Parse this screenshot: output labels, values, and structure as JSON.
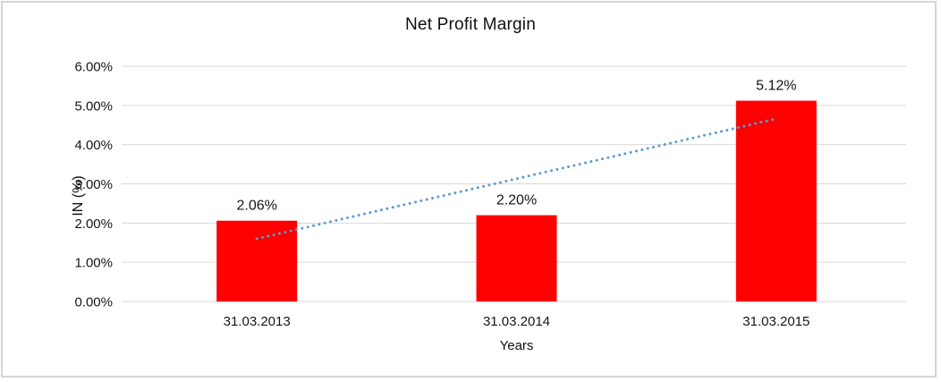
{
  "chart_data": {
    "type": "bar",
    "title": "Net Profit Margin",
    "xlabel": "Years",
    "ylabel": "IN (%)",
    "categories": [
      "31.03.2013",
      "31.03.2014",
      "31.03.2015"
    ],
    "values": [
      2.06,
      2.2,
      5.12
    ],
    "data_labels": [
      "2.06%",
      "2.20%",
      "5.12%"
    ],
    "ylim": [
      0,
      6
    ],
    "y_tick_step": 1,
    "y_ticks": [
      "0.00%",
      "1.00%",
      "2.00%",
      "3.00%",
      "4.00%",
      "5.00%",
      "6.00%"
    ],
    "grid": true,
    "legend": "none",
    "colors": {
      "bar": "#FF0000",
      "trendline": "#5B9BD5",
      "gridline": "#D9D9D9",
      "frame": "#D5D5D5",
      "text": "#161616"
    },
    "trendline": {
      "type": "linear",
      "style": "dotted",
      "start_value": 1.6,
      "end_value": 4.66
    }
  }
}
